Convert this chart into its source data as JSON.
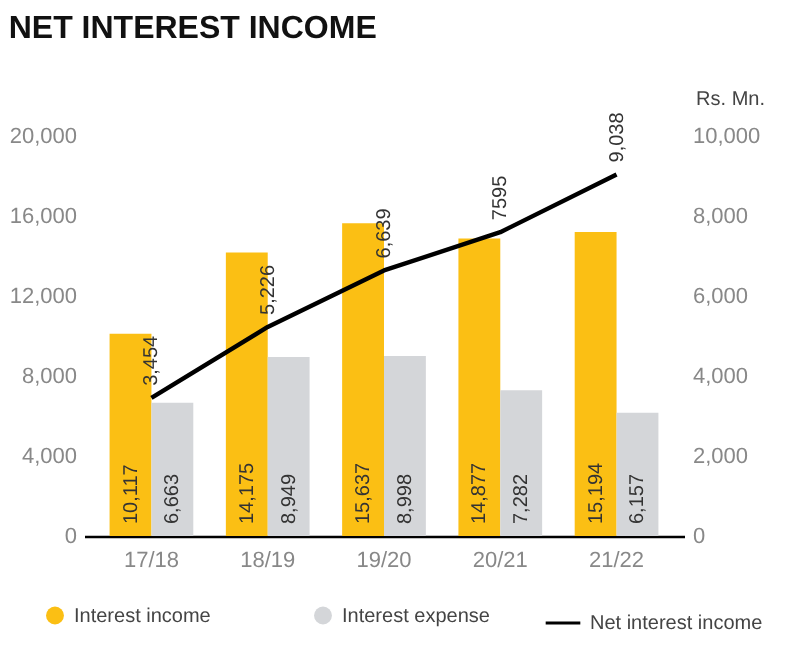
{
  "chart_data": {
    "type": "bar",
    "title": "NET INTEREST INCOME",
    "y2label": "Rs. Mn.",
    "categories": [
      "17/18",
      "18/19",
      "19/20",
      "20/21",
      "21/22"
    ],
    "series": [
      {
        "name": "Interest income",
        "color": "#fbbf14",
        "values": [
          10117,
          14175,
          15637,
          14877,
          15194
        ],
        "value_labels": [
          "10,117",
          "14,175",
          "15,637",
          "14,877",
          "15,194"
        ]
      },
      {
        "name": "Interest expense",
        "color": "#d4d6d9",
        "values": [
          6663,
          8949,
          8998,
          7282,
          6157
        ],
        "value_labels": [
          "6,663",
          "8,949",
          "8,998",
          "7,282",
          "6,157"
        ]
      },
      {
        "name": "Net interest income",
        "type": "line",
        "axis": "y2",
        "color": "#000000",
        "values": [
          3454,
          5226,
          6639,
          7595,
          9038
        ],
        "value_labels": [
          "3,454",
          "5,226",
          "6,639",
          "7595",
          "9,038"
        ]
      }
    ],
    "ylim": [
      0,
      20000
    ],
    "yticks": [
      0,
      {
        "value": 4000,
        "label": "4,000"
      },
      {
        "value": 8000,
        "label": "8,000"
      },
      {
        "value": 12000,
        "label": "12,000"
      },
      {
        "value": 16000,
        "label": "16,000"
      },
      {
        "value": 20000,
        "label": "20,000"
      }
    ],
    "y2lim": [
      0,
      10000
    ],
    "y2ticks": [
      0,
      {
        "value": 2000,
        "label": "2,000"
      },
      {
        "value": 4000,
        "label": "4,000"
      },
      {
        "value": 6000,
        "label": "6,000"
      },
      {
        "value": 8000,
        "label": "8,000"
      },
      {
        "value": 10000,
        "label": "10,000"
      }
    ],
    "grid": false,
    "legend": "bottom"
  }
}
